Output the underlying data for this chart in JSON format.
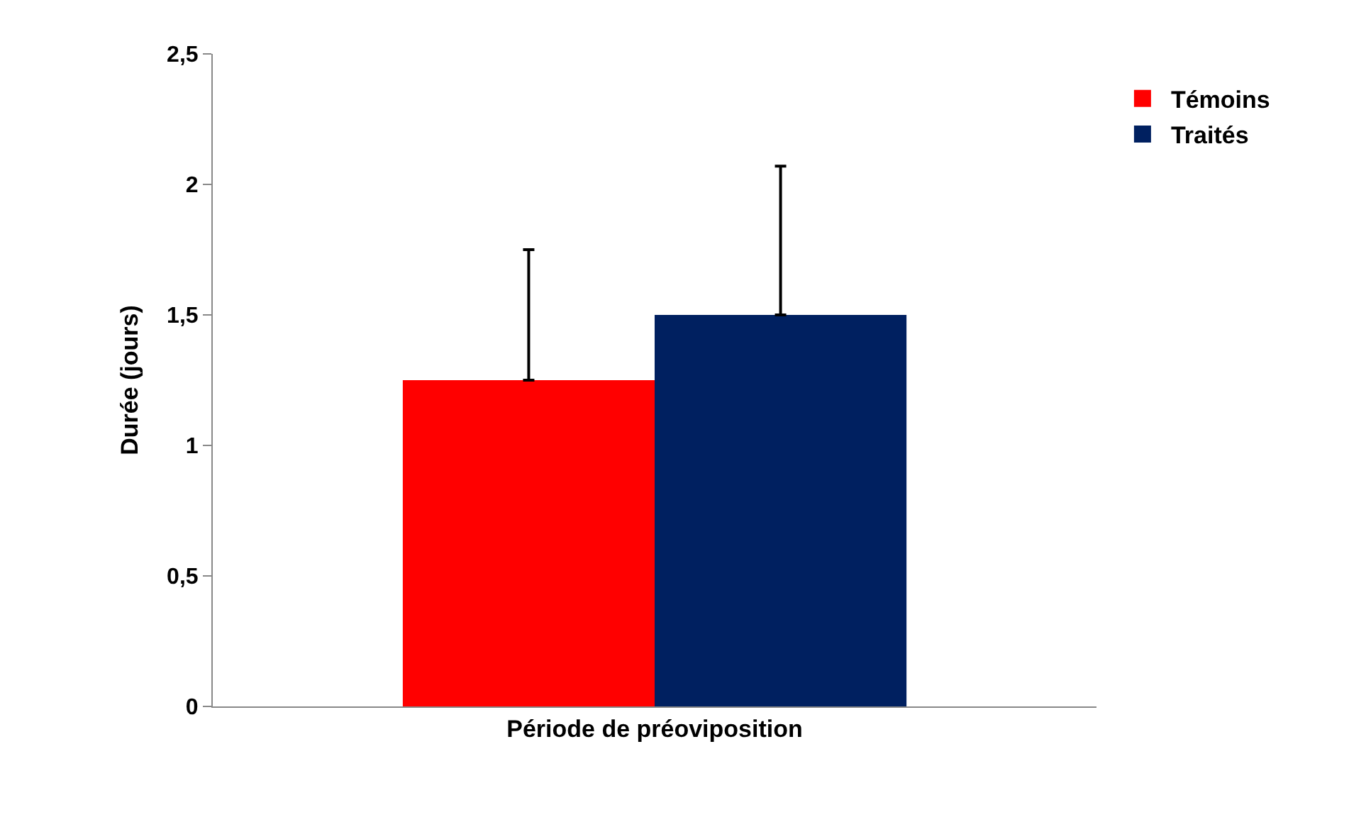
{
  "chart_data": {
    "type": "bar",
    "ylabel": "Durée (jours)",
    "categories": [
      "Période de préoviposition"
    ],
    "series": [
      {
        "name": "Témoins",
        "color": "#ff0000",
        "values": [
          1.25
        ],
        "errors": [
          [
            1.25,
            1.75
          ]
        ]
      },
      {
        "name": "Traités",
        "color": "#002060",
        "values": [
          1.5
        ],
        "errors": [
          [
            1.5,
            2.07
          ]
        ]
      }
    ],
    "ylim": [
      0,
      2.5
    ],
    "yticks": [
      0,
      {
        "value": 0.5,
        "label": "0,5"
      },
      1,
      {
        "value": 1.5,
        "label": "1,5"
      },
      2,
      {
        "value": 2.5,
        "label": "2,5"
      }
    ],
    "legend": "top right"
  }
}
